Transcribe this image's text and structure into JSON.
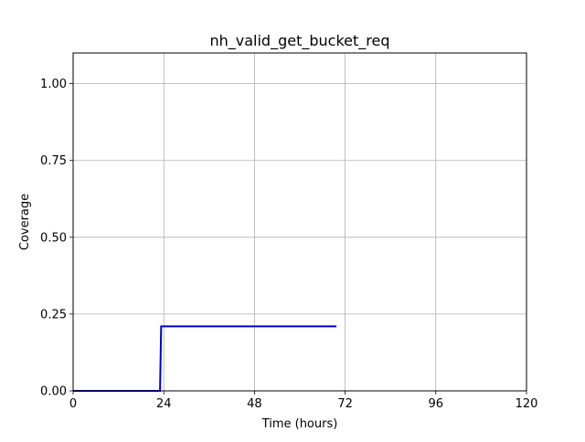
{
  "chart_data": {
    "type": "line",
    "title": "nh_valid_get_bucket_req",
    "xlabel": "Time (hours)",
    "ylabel": "Coverage",
    "xlim": [
      0,
      120
    ],
    "ylim": [
      0,
      1.1
    ],
    "xticks": [
      0,
      24,
      48,
      72,
      96,
      120
    ],
    "xtick_labels": [
      "0",
      "24",
      "48",
      "72",
      "96",
      "120"
    ],
    "yticks": [
      0,
      0.25,
      0.5,
      0.75,
      1.0
    ],
    "ytick_labels": [
      "0.00",
      "0.25",
      "0.50",
      "0.75",
      "1.00"
    ],
    "grid": true,
    "series": [
      {
        "color": "#0000cc",
        "x": [
          0,
          23,
          23.3,
          69.7
        ],
        "y": [
          0,
          0,
          0.21,
          0.21
        ]
      }
    ]
  }
}
